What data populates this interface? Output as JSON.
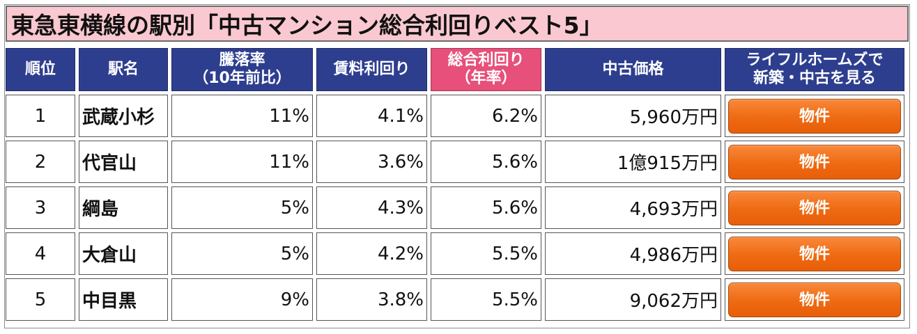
{
  "title": "東急東横線の駅別「中古マンション総合利回りベスト5」",
  "headers": {
    "rank": "順位",
    "station": "駅名",
    "decline_line1": "騰落率",
    "decline_line2": "（10年前比）",
    "rent_yield": "賃料利回り",
    "total_yield_line1": "総合利回り",
    "total_yield_line2": "（年率）",
    "price": "中古価格",
    "lifull_line1": "ライフルホームズで",
    "lifull_line2": "新築・中古を見る"
  },
  "rows": [
    {
      "rank": "1",
      "station": "武蔵小杉",
      "decline": "11%",
      "rent_yield": "4.1%",
      "total_yield": "6.2%",
      "price": "5,960万円",
      "button": "物件"
    },
    {
      "rank": "2",
      "station": "代官山",
      "decline": "11%",
      "rent_yield": "3.6%",
      "total_yield": "5.6%",
      "price": "1億915万円",
      "button": "物件"
    },
    {
      "rank": "3",
      "station": "綱島",
      "decline": "5%",
      "rent_yield": "4.3%",
      "total_yield": "5.6%",
      "price": "4,693万円",
      "button": "物件"
    },
    {
      "rank": "4",
      "station": "大倉山",
      "decline": "5%",
      "rent_yield": "4.2%",
      "total_yield": "5.5%",
      "price": "4,986万円",
      "button": "物件"
    },
    {
      "rank": "5",
      "station": "中目黒",
      "decline": "9%",
      "rent_yield": "3.8%",
      "total_yield": "5.5%",
      "price": "9,062万円",
      "button": "物件"
    }
  ],
  "colors": {
    "header_bg": "#2e3e8f",
    "highlight_header_bg": "#e6507a",
    "highlight_cell_bg": "#ef8286",
    "title_bg": "#f9c8d0",
    "button_bg": "#ee6a12"
  }
}
